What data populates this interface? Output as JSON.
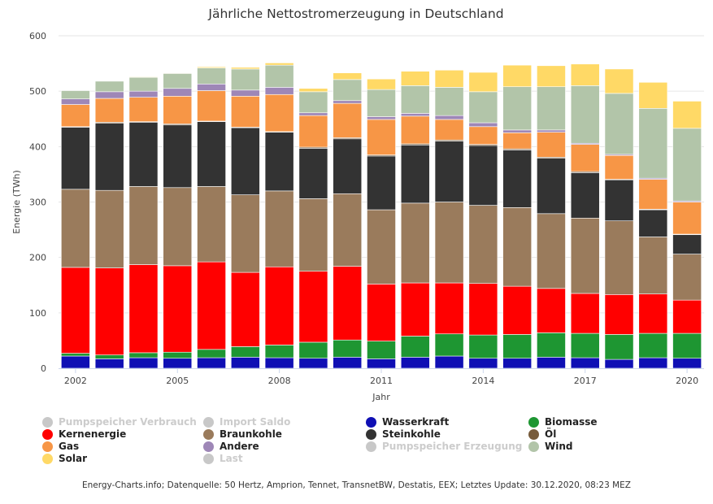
{
  "chart_data": {
    "type": "bar",
    "stacked": true,
    "title": "Jährliche Nettostromerzeugung in Deutschland",
    "xlabel": "Jahr",
    "ylabel": "Energie (TWh)",
    "ylim": [
      0,
      600
    ],
    "yticks": [
      0,
      100,
      200,
      300,
      400,
      500,
      600
    ],
    "grid": true,
    "legend_position": "bottom",
    "categories": [
      "2002",
      "2003",
      "2004",
      "2005",
      "2006",
      "2007",
      "2008",
      "2009",
      "2010",
      "2011",
      "2012",
      "2013",
      "2014",
      "2015",
      "2016",
      "2017",
      "2018",
      "2019",
      "2020"
    ],
    "xtick_labels": [
      "2002",
      "2005",
      "2008",
      "2011",
      "2014",
      "2017",
      "2020"
    ],
    "series": [
      {
        "name": "Wasserkraft",
        "color": "#0f0fb4",
        "values": [
          22,
          17,
          19,
          18,
          19,
          20,
          19,
          18,
          20,
          17,
          20,
          22,
          18,
          18,
          20,
          19,
          16,
          19,
          18
        ]
      },
      {
        "name": "Biomasse",
        "color": "#1e9632",
        "values": [
          5,
          7,
          9,
          11,
          15,
          19,
          23,
          29,
          31,
          32,
          38,
          40,
          42,
          43,
          44,
          44,
          45,
          44,
          45
        ]
      },
      {
        "name": "Kernenergie",
        "color": "#ff0000",
        "values": [
          155,
          157,
          159,
          156,
          158,
          134,
          141,
          128,
          133,
          103,
          96,
          92,
          93,
          87,
          80,
          72,
          72,
          71,
          60
        ]
      },
      {
        "name": "Braunkohle",
        "color": "#9a7b5c",
        "values": [
          141,
          140,
          141,
          141,
          136,
          140,
          137,
          131,
          131,
          134,
          144,
          146,
          141,
          142,
          135,
          136,
          133,
          103,
          83
        ]
      },
      {
        "name": "Steinkohle",
        "color": "#333333",
        "values": [
          112,
          121,
          116,
          113,
          117,
          121,
          106,
          91,
          99,
          97,
          105,
          110,
          108,
          104,
          100,
          82,
          74,
          49,
          35
        ]
      },
      {
        "name": "Öl",
        "color": "#775b3b",
        "values": [
          1,
          2,
          1,
          2,
          1,
          1,
          1,
          2,
          2,
          2,
          2,
          2,
          2,
          2,
          2,
          2,
          1,
          1,
          1
        ]
      },
      {
        "name": "Gas",
        "color": "#f79646",
        "values": [
          40,
          43,
          44,
          50,
          55,
          56,
          67,
          57,
          62,
          64,
          50,
          37,
          32,
          29,
          45,
          49,
          43,
          54,
          58
        ]
      },
      {
        "name": "Andere",
        "color": "#9e87b7",
        "values": [
          10,
          12,
          11,
          14,
          12,
          11,
          13,
          5,
          5,
          5,
          5,
          7,
          7,
          5,
          4,
          2,
          2,
          2,
          2
        ]
      },
      {
        "name": "Wind",
        "color": "#b2c5a9",
        "values": [
          15,
          19,
          25,
          27,
          29,
          38,
          40,
          38,
          38,
          49,
          50,
          51,
          56,
          78,
          78,
          104,
          110,
          126,
          131
        ]
      },
      {
        "name": "Solar",
        "color": "#ffd966",
        "values": [
          0,
          0,
          1,
          1,
          2,
          3,
          4,
          6,
          12,
          19,
          26,
          31,
          35,
          39,
          38,
          39,
          44,
          47,
          49
        ]
      }
    ],
    "legend": [
      {
        "name": "Pumpspeicher Verbrauch",
        "color": "#c8c8c8",
        "visible": false
      },
      {
        "name": "Import Saldo",
        "color": "#c8c8c8",
        "visible": false
      },
      {
        "name": "Wasserkraft",
        "color": "#0f0fb4",
        "visible": true
      },
      {
        "name": "Biomasse",
        "color": "#1e9632",
        "visible": true
      },
      {
        "name": "Kernenergie",
        "color": "#ff0000",
        "visible": true
      },
      {
        "name": "Braunkohle",
        "color": "#9a7b5c",
        "visible": true
      },
      {
        "name": "Steinkohle",
        "color": "#333333",
        "visible": true
      },
      {
        "name": "Öl",
        "color": "#775b3b",
        "visible": true
      },
      {
        "name": "Gas",
        "color": "#f79646",
        "visible": true
      },
      {
        "name": "Andere",
        "color": "#9e87b7",
        "visible": true
      },
      {
        "name": "Pumpspeicher Erzeugung",
        "color": "#c8c8c8",
        "visible": false
      },
      {
        "name": "Wind",
        "color": "#b2c5a9",
        "visible": true
      },
      {
        "name": "Solar",
        "color": "#ffd966",
        "visible": true
      },
      {
        "name": "Last",
        "color": "#c8c8c8",
        "visible": false
      }
    ]
  },
  "footer": "Energy-Charts.info; Datenquelle: 50 Hertz, Amprion, Tennet, TransnetBW, Destatis, EEX; Letztes Update: 30.12.2020, 08:23 MEZ"
}
